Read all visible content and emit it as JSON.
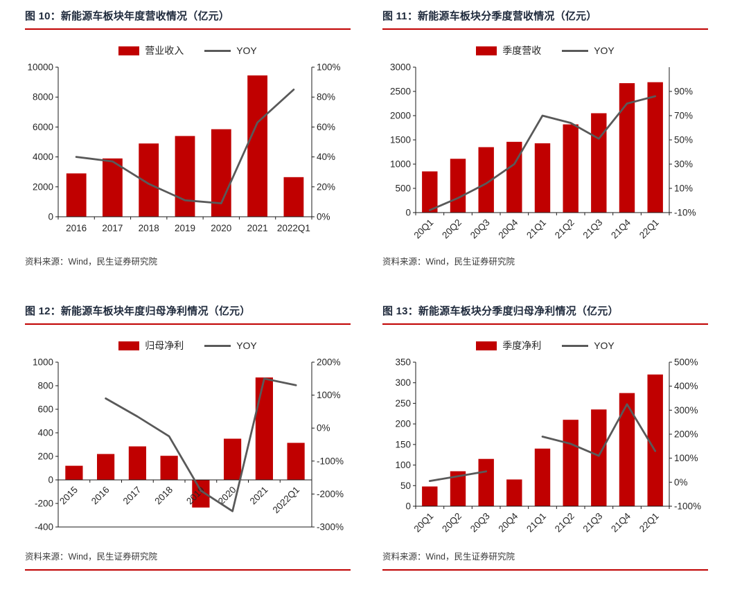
{
  "colors": {
    "bar": "#C00000",
    "line": "#595959",
    "title": "#202B3D",
    "title_rule": "#C00000",
    "axis_text": "#262626",
    "axis_line": "#1a1a1a",
    "source_text": "#3a3a3a",
    "background": "#ffffff"
  },
  "charts": [
    {
      "panel_title": "图 10：新能源车板块年度营收情况（亿元）",
      "type": "bar+line",
      "categories": [
        "2016",
        "2017",
        "2018",
        "2019",
        "2020",
        "2021",
        "2022Q1"
      ],
      "bar_series": {
        "name": "营业收入",
        "axis": "left",
        "values": [
          2900,
          3900,
          4900,
          5400,
          5850,
          9450,
          2650
        ]
      },
      "line_series": {
        "name": "YOY",
        "axis": "right",
        "values": [
          40,
          37,
          22,
          11,
          9,
          63,
          85
        ]
      },
      "left_axis": {
        "min": 0,
        "max": 10000,
        "ticks": [
          0,
          2000,
          4000,
          6000,
          8000,
          10000
        ],
        "format": "number"
      },
      "right_axis": {
        "min": 0,
        "max": 100,
        "ticks": [
          0,
          20,
          40,
          60,
          80,
          100
        ],
        "format": "percent"
      },
      "x_label_rotate": 0,
      "x_labels_at": "bottom",
      "grid": false,
      "legend_position": "top",
      "source": "资料来源：Wind，民生证券研究院"
    },
    {
      "panel_title": "图 11：新能源车板块分季度营收情况（亿元）",
      "type": "bar+line",
      "categories": [
        "20Q1",
        "20Q2",
        "20Q3",
        "20Q4",
        "21Q1",
        "21Q2",
        "21Q3",
        "21Q4",
        "22Q1"
      ],
      "bar_series": {
        "name": "季度营收",
        "axis": "left",
        "values": [
          850,
          1110,
          1350,
          1460,
          1430,
          1820,
          2050,
          2670,
          2690
        ]
      },
      "line_series": {
        "name": "YOY",
        "axis": "right",
        "values": [
          -8,
          2,
          14,
          30,
          70,
          64,
          51,
          80,
          86
        ]
      },
      "left_axis": {
        "min": 0,
        "max": 3000,
        "ticks": [
          0,
          500,
          1000,
          1500,
          2000,
          2500,
          3000
        ],
        "format": "number"
      },
      "right_axis": {
        "min": -10,
        "max": 110,
        "ticks": [
          -10,
          10,
          30,
          50,
          70,
          90
        ],
        "format": "percent"
      },
      "x_label_rotate": -45,
      "x_labels_at": "bottom",
      "grid": false,
      "legend_position": "top",
      "source": "资料来源：Wind，民生证券研究院"
    },
    {
      "panel_title": "图 12：新能源车板块年度归母净利情况（亿元）",
      "type": "bar+line",
      "categories": [
        "2015",
        "2016",
        "2017",
        "2018",
        "2019",
        "2020",
        "2021",
        "2022Q1"
      ],
      "bar_series": {
        "name": "归母净利",
        "axis": "left",
        "values": [
          120,
          220,
          285,
          205,
          -235,
          350,
          870,
          315
        ]
      },
      "line_series": {
        "name": "YOY",
        "axis": "right",
        "values": [
          null,
          90,
          35,
          -25,
          -190,
          -252,
          150,
          130
        ]
      },
      "left_axis": {
        "min": -400,
        "max": 1000,
        "ticks": [
          -400,
          -200,
          0,
          200,
          400,
          600,
          800,
          1000
        ],
        "format": "number"
      },
      "right_axis": {
        "min": -300,
        "max": 200,
        "ticks": [
          -300,
          -200,
          -100,
          0,
          100,
          200
        ],
        "format": "percent"
      },
      "x_label_rotate": -45,
      "x_labels_at": "zero",
      "grid": false,
      "legend_position": "top",
      "source": "资料来源：Wind，民生证券研究院"
    },
    {
      "panel_title": "图 13：新能源车板块分季度归母净利情况（亿元）",
      "type": "bar+line",
      "categories": [
        "20Q1",
        "20Q2",
        "20Q3",
        "20Q4",
        "21Q1",
        "21Q2",
        "21Q3",
        "21Q4",
        "22Q1"
      ],
      "bar_series": {
        "name": "季度净利",
        "axis": "left",
        "values": [
          48,
          85,
          115,
          65,
          140,
          210,
          235,
          275,
          320
        ]
      },
      "line_series": {
        "name": "YOY",
        "axis": "right",
        "values": [
          5,
          25,
          45,
          null,
          190,
          160,
          110,
          325,
          130
        ]
      },
      "left_axis": {
        "min": 0,
        "max": 350,
        "ticks": [
          0,
          50,
          100,
          150,
          200,
          250,
          300,
          350
        ],
        "format": "number"
      },
      "right_axis": {
        "min": -100,
        "max": 500,
        "ticks": [
          -100,
          0,
          100,
          200,
          300,
          400,
          500
        ],
        "format": "percent"
      },
      "x_label_rotate": -45,
      "x_labels_at": "bottom",
      "grid": false,
      "legend_position": "top",
      "source": "资料来源：Wind，民生证券研究院"
    }
  ]
}
